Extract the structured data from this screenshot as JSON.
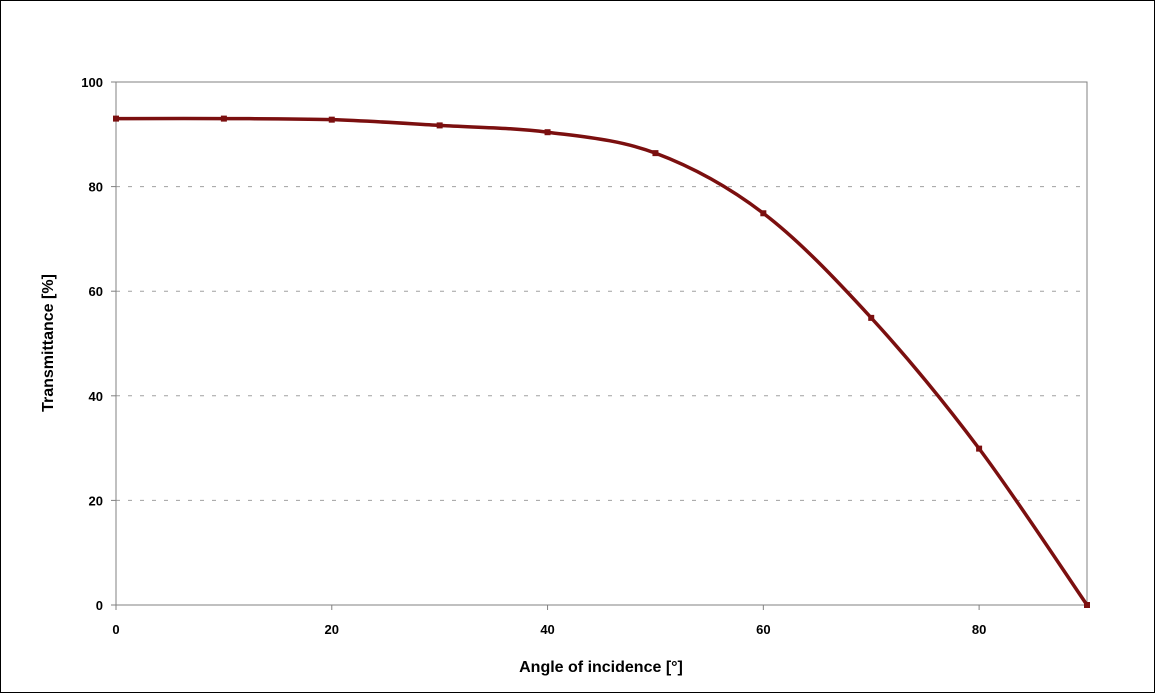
{
  "chart_data": {
    "type": "line",
    "title": "",
    "xlabel": "Angle of incidence [°]",
    "ylabel": "Transmittance [%]",
    "xlim": [
      0,
      90
    ],
    "ylim": [
      0,
      100
    ],
    "x_ticks": [
      0,
      20,
      40,
      60,
      80
    ],
    "y_ticks": [
      0,
      20,
      40,
      60,
      80,
      100
    ],
    "x_tick_labels": [
      "0",
      "20",
      "40",
      "60",
      "80"
    ],
    "y_tick_labels": [
      "0",
      "20",
      "40",
      "60",
      "80",
      "100"
    ],
    "grid": "horizontal dashed",
    "legend": "none",
    "smoothed": true,
    "series": [
      {
        "color": "#7B0F0F",
        "x": [
          0,
          10,
          20,
          30,
          40,
          50,
          60,
          70,
          80,
          90
        ],
        "y": [
          93,
          93,
          92.8,
          91.7,
          90.4,
          86.4,
          74.9,
          54.9,
          29.9,
          0
        ]
      }
    ]
  }
}
